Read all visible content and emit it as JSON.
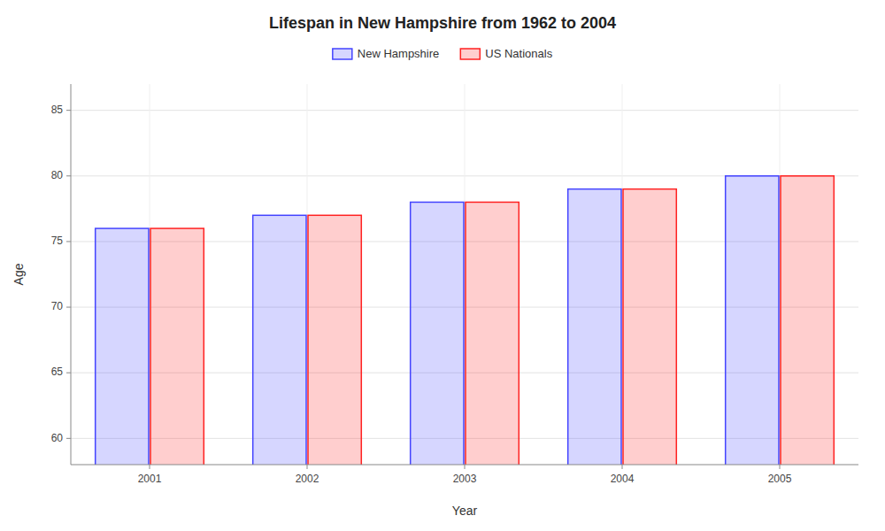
{
  "chart_data": {
    "type": "bar",
    "title": "Lifespan in New Hampshire from 1962 to 2004",
    "xlabel": "Year",
    "ylabel": "Age",
    "categories": [
      "2001",
      "2002",
      "2003",
      "2004",
      "2005"
    ],
    "series": [
      {
        "name": "New Hampshire",
        "color": "#4444ff",
        "values": [
          76,
          77,
          78,
          79,
          80
        ]
      },
      {
        "name": "US Nationals",
        "color": "#ff2222",
        "values": [
          76,
          77,
          78,
          79,
          80
        ]
      }
    ],
    "ylim": [
      58,
      87
    ],
    "yticks": [
      60,
      65,
      70,
      75,
      80,
      85
    ],
    "grid": true,
    "legend": "top"
  }
}
